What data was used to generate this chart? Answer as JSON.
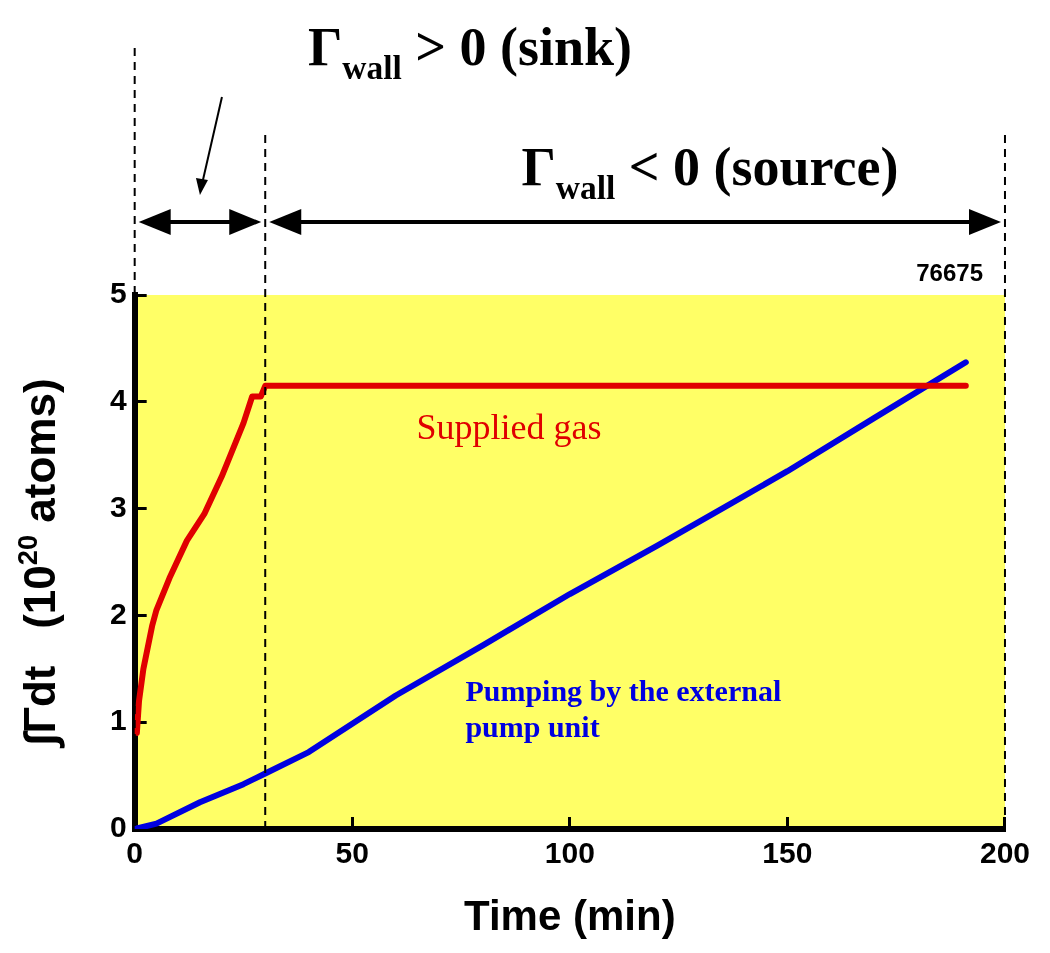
{
  "chart_data": {
    "type": "line",
    "xlabel": "Time (min)",
    "ylabel": "∫Γdt   (10$^{20}$ atoms)",
    "xlim": [
      0,
      200
    ],
    "xticks": [
      0,
      50,
      100,
      150,
      200
    ],
    "ylim": [
      0,
      5
    ],
    "yticks": [
      0,
      1,
      2,
      3,
      4,
      5
    ],
    "grid": false,
    "legend": false,
    "marker": "none",
    "line_style": "solid",
    "series": [
      {
        "name": "Supplied gas",
        "color": "#e00000",
        "x": [
          0.5,
          1,
          2,
          4,
          5,
          8,
          12,
          16,
          20,
          25,
          27,
          29,
          30,
          191
        ],
        "values": [
          0.9,
          1.2,
          1.5,
          1.9,
          2.05,
          2.35,
          2.7,
          2.95,
          3.3,
          3.8,
          4.05,
          4.05,
          4.15,
          4.15
        ]
      },
      {
        "name": "Pumping by the external pump unit",
        "color": "#0000e0",
        "x": [
          0,
          5,
          15,
          25,
          30,
          40,
          60,
          80,
          100,
          120,
          150,
          170,
          191
        ],
        "values": [
          0,
          0.05,
          0.25,
          0.42,
          0.52,
          0.72,
          1.25,
          1.72,
          2.2,
          2.65,
          3.35,
          3.85,
          4.37
        ]
      }
    ],
    "ref_lines": [
      {
        "axis": "x",
        "value": 0,
        "line_style": "dashed",
        "color": "#000000"
      },
      {
        "axis": "x",
        "value": 30,
        "line_style": "dashed",
        "color": "#000000"
      },
      {
        "axis": "x",
        "value": 200,
        "line_style": "dashed",
        "color": "#000000"
      }
    ],
    "annotations": [
      "Γ$_{wall}$ > 0 (sink)",
      "Γ$_{wall}$ < 0 (source)",
      "76675"
    ]
  }
}
